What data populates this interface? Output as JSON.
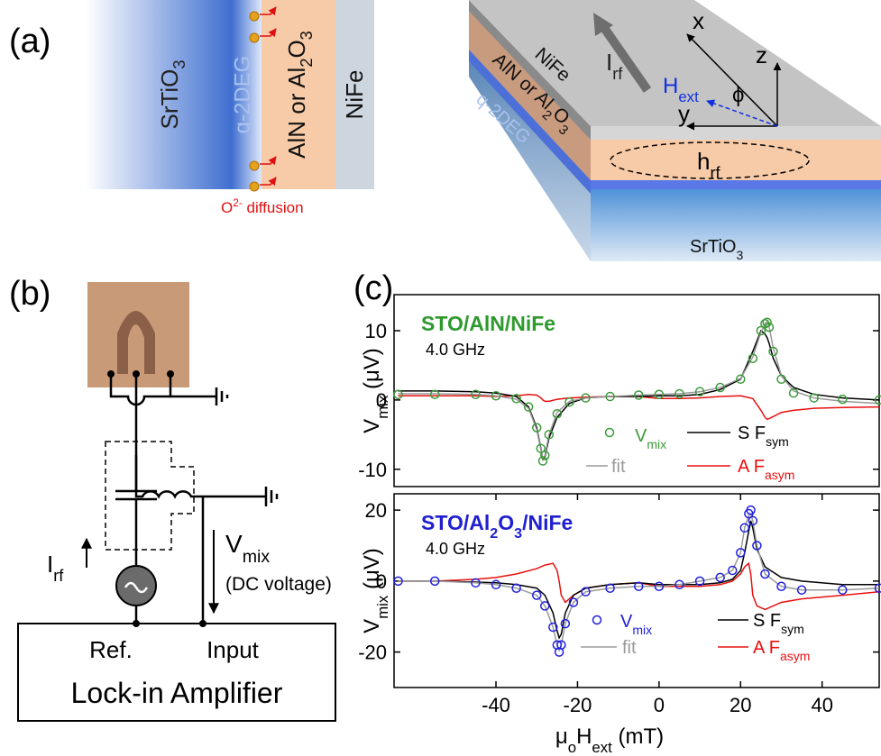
{
  "panels": {
    "a": {
      "label": "(a)",
      "left": {
        "substrate": [
          "SrTiO",
          "3"
        ],
        "q2deg": "q-2DEG",
        "barrier": [
          "AlN or Al",
          "2",
          "O",
          "3"
        ],
        "nife": "NiFe",
        "oxygen": [
          "O",
          "2-",
          " diffusion"
        ]
      },
      "right": {
        "current": [
          "I",
          "rf"
        ],
        "x": "x",
        "y": "y",
        "z": "z",
        "field": [
          "H",
          "ext"
        ],
        "angle": "ϕ",
        "rf_field": [
          "h",
          "rf"
        ],
        "nife": "NiFe",
        "barrier": [
          "AlN or Al",
          "2",
          "O",
          "3"
        ],
        "q2deg": "q-2DEG",
        "substrate": [
          "SrTiO",
          "3"
        ]
      }
    },
    "b": {
      "label": "(b)",
      "current": [
        "I",
        "rf"
      ],
      "voltage": [
        "V",
        "mix"
      ],
      "voltage_note": "(DC voltage)",
      "ref": "Ref.",
      "input": "Input",
      "amplifier": "Lock-in Amplifier"
    },
    "c": {
      "label": "(c)"
    }
  },
  "chart_data": [
    {
      "type": "line",
      "title": "STO/AlN/NiFe",
      "title_color": "#2e9a2e",
      "subtitle": "4.0 GHz",
      "y_label": [
        "V",
        "mix",
        " (μV)"
      ],
      "xlim": [
        -65,
        54
      ],
      "ylim": [
        -12.5,
        15.2
      ],
      "yticks": [
        -10,
        0,
        10
      ],
      "x": [
        -64,
        -55,
        -45,
        -40,
        -35,
        -32,
        -30,
        -29,
        -28.5,
        -28,
        -27,
        -25,
        -22,
        -18,
        -12,
        -5,
        0,
        5,
        10,
        15,
        20,
        23,
        25,
        26,
        26.5,
        27,
        28,
        30,
        33,
        38,
        45,
        54
      ],
      "series": [
        {
          "name": [
            "V",
            "mix"
          ],
          "color": "#3c9a3c",
          "marker": "circle",
          "values": [
            0.8,
            0.8,
            0.8,
            0.6,
            0.2,
            -1,
            -4,
            -7,
            -8.8,
            -8,
            -5,
            -2,
            -0.3,
            0.3,
            0.5,
            0.7,
            0.8,
            0.9,
            1.2,
            1.8,
            3,
            6,
            10,
            11,
            11.2,
            10.5,
            7,
            3,
            1,
            0.3,
            0.1,
            0
          ]
        },
        {
          "name": [
            "fit"
          ],
          "color": "#9a9a9a",
          "values": [
            0.9,
            0.9,
            0.8,
            0.6,
            0.1,
            -1.2,
            -4.3,
            -7.2,
            -8.5,
            -8,
            -5,
            -1.8,
            -0.2,
            0.3,
            0.5,
            0.7,
            0.8,
            0.9,
            1.2,
            1.8,
            3.1,
            6.2,
            9.8,
            11,
            11.3,
            10.6,
            7.5,
            3.5,
            1.3,
            0.3,
            -0.2,
            -0.5
          ]
        },
        {
          "name": [
            "S F",
            "sym"
          ],
          "color": "#000000",
          "values": [
            1.3,
            1.3,
            1.2,
            1,
            0.5,
            -1,
            -4,
            -7,
            -8.6,
            -8.2,
            -5.5,
            -2.5,
            -0.5,
            0.3,
            0.5,
            0.5,
            0.6,
            0.6,
            0.8,
            1.5,
            3,
            7,
            10,
            9.5,
            9,
            8.2,
            6,
            3.5,
            1.8,
            0.8,
            0.3,
            0
          ]
        },
        {
          "name": [
            "A F",
            "asym"
          ],
          "color": "#e81010",
          "values": [
            0.6,
            0.6,
            0.6,
            0.5,
            0.6,
            0.8,
            0.7,
            0.3,
            0,
            -0.2,
            -0.2,
            0.1,
            0.3,
            0.4,
            0.5,
            0.5,
            0.2,
            0.2,
            0.3,
            0.5,
            0.6,
            0.2,
            -1.5,
            -2.5,
            -2.8,
            -2.7,
            -2.4,
            -1.8,
            -1.5,
            -1.2,
            -1.1,
            -1
          ]
        }
      ]
    },
    {
      "type": "line",
      "title": [
        "STO/Al",
        "2",
        "O",
        "3",
        "/NiFe"
      ],
      "title_color": "#2020d0",
      "subtitle": "4.0 GHz",
      "y_label": [
        "V",
        "mix",
        " (μV)"
      ],
      "x_label": [
        "μ",
        "o",
        "H",
        "ext",
        " (mT)"
      ],
      "xlim": [
        -65,
        54
      ],
      "ylim": [
        -30,
        24.6
      ],
      "xticks": [
        -40,
        -20,
        0,
        20,
        40
      ],
      "yticks": [
        -20,
        0,
        20
      ],
      "x": [
        -64,
        -55,
        -45,
        -40,
        -35,
        -30,
        -28,
        -26,
        -25,
        -24.5,
        -24,
        -23,
        -21,
        -18,
        -12,
        -5,
        0,
        5,
        10,
        15,
        18,
        20,
        21,
        22,
        22.5,
        23,
        24,
        26,
        30,
        35,
        45,
        54
      ],
      "series": [
        {
          "name": [
            "V",
            "mix"
          ],
          "color": "#2020e0",
          "marker": "circle",
          "values": [
            0,
            0,
            -0.5,
            -1,
            -2,
            -4,
            -7,
            -13,
            -18,
            -20,
            -18,
            -12,
            -6,
            -3,
            -2,
            -1.5,
            -1.5,
            -1,
            0,
            1,
            3,
            8,
            15,
            19,
            20,
            17,
            10,
            2,
            -1.5,
            -2.5,
            -2.5,
            -2
          ]
        },
        {
          "name": [
            "fit"
          ],
          "color": "#9a9a9a",
          "values": [
            0,
            0,
            -0.5,
            -1,
            -2,
            -4,
            -7,
            -13,
            -18,
            -19.5,
            -18,
            -12,
            -6,
            -3,
            -2,
            -1.5,
            -1.5,
            -1,
            0,
            1,
            3,
            8,
            15,
            18.5,
            19,
            17,
            10,
            2,
            -1.5,
            -2.5,
            -2.5,
            -2
          ]
        },
        {
          "name": [
            "S F",
            "sym"
          ],
          "color": "#000000",
          "values": [
            0,
            0,
            -0.3,
            -0.5,
            -1,
            -2,
            -4,
            -9,
            -14,
            -16,
            -15,
            -9,
            -4,
            -2,
            -1,
            -0.5,
            -1,
            -1,
            -1,
            -0.5,
            0.5,
            3,
            8,
            14,
            17,
            15,
            9,
            4,
            1,
            0,
            -1,
            -1
          ]
        },
        {
          "name": [
            "A F",
            "asym"
          ],
          "color": "#e81010",
          "values": [
            0,
            0,
            0.5,
            1,
            2,
            3.5,
            4.5,
            5,
            3,
            0,
            -4,
            -6,
            -4,
            -2,
            -1,
            -0.5,
            -1.5,
            -1.5,
            -1.5,
            -1,
            0,
            2,
            4,
            5,
            2,
            -4,
            -7,
            -8,
            -6,
            -5,
            -4,
            -3
          ]
        }
      ]
    }
  ]
}
